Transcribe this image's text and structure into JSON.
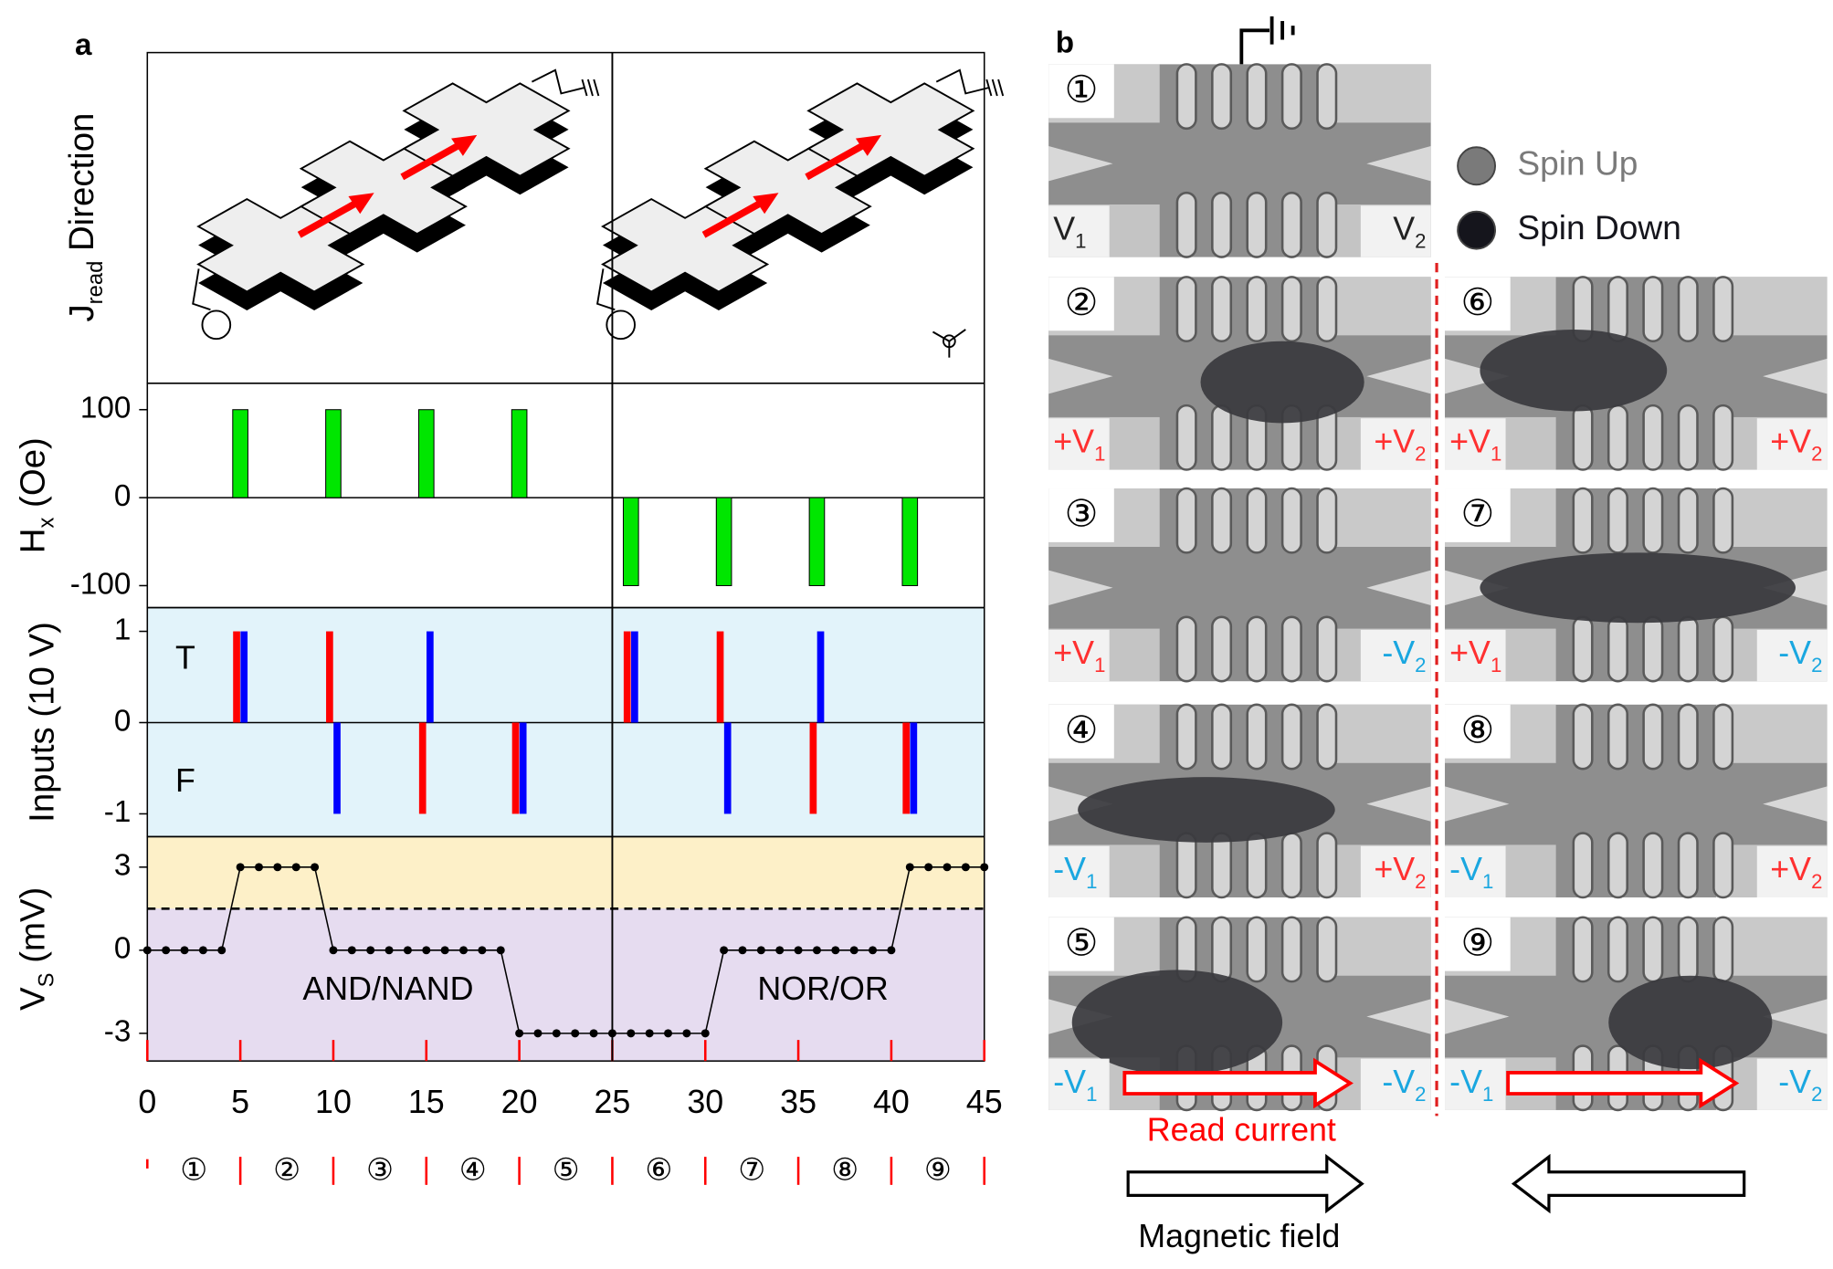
{
  "panel_a": {
    "label": "a",
    "schematic_ylabel": {
      "main": "J",
      "sub": "read",
      "rest": " Direction"
    }
  },
  "chart_data": [
    {
      "type": "bar",
      "ylabel": {
        "main": "H",
        "sub": "x",
        "rest": " (Oe)"
      },
      "x": [
        5,
        10,
        15,
        20,
        26,
        31,
        36,
        41
      ],
      "values": [
        100,
        100,
        100,
        100,
        -100,
        -100,
        -100,
        -100
      ],
      "color": "#00e600",
      "ylim": [
        -125,
        130
      ],
      "yticks": [
        -100,
        0,
        100
      ]
    },
    {
      "type": "bar",
      "ylabel": {
        "main": "Inputs  (10 V)"
      },
      "annotations": [
        "T",
        "F"
      ],
      "background": "#e2f3fa",
      "series": [
        {
          "color": "#ff0000",
          "x": [
            4.8,
            9.8,
            14.8,
            19.8,
            25.8,
            30.8,
            35.8,
            40.8
          ],
          "values": [
            1,
            1,
            -1,
            -1,
            1,
            1,
            -1,
            -1
          ]
        },
        {
          "color": "#0000ff",
          "x": [
            5.2,
            10.2,
            15.2,
            20.2,
            26.2,
            31.2,
            36.2,
            41.2
          ],
          "values": [
            1,
            -1,
            1,
            -1,
            1,
            -1,
            1,
            -1
          ]
        }
      ],
      "ylim": [
        -1.25,
        1.26
      ],
      "yticks": [
        -1,
        0,
        1
      ]
    },
    {
      "type": "line",
      "ylabel": {
        "main": "V",
        "sub": "S",
        "rest": " (mV)"
      },
      "x": [
        0,
        1,
        2,
        3,
        4,
        5,
        6,
        7,
        8,
        9,
        10,
        11,
        12,
        13,
        14,
        15,
        16,
        17,
        18,
        19,
        20,
        21,
        22,
        23,
        24,
        25,
        26,
        27,
        28,
        29,
        30,
        31,
        32,
        33,
        34,
        35,
        36,
        37,
        38,
        39,
        40,
        41,
        42,
        43,
        44,
        45
      ],
      "values": [
        0,
        0,
        0,
        0,
        0,
        3,
        3,
        3,
        3,
        3,
        0,
        0,
        0,
        0,
        0,
        0,
        0,
        0,
        0,
        0,
        -3,
        -3,
        -3,
        -3,
        -3,
        -3,
        -3,
        -3,
        -3,
        -3,
        -3,
        0,
        0,
        0,
        0,
        0,
        0,
        0,
        0,
        0,
        0,
        3,
        3,
        3,
        3,
        3
      ],
      "color": "#000000",
      "threshold": 1.5,
      "upper_color": "#fdf0c8",
      "lower_color": "#e6dcf0",
      "annotations": [
        "AND/NAND",
        "NOR/OR"
      ],
      "ylim": [
        -4.0,
        4.1
      ],
      "yticks": [
        -3,
        0,
        3
      ],
      "xlim": [
        0,
        45
      ],
      "xticks": [
        0,
        5,
        10,
        15,
        20,
        25,
        30,
        35,
        40,
        45
      ],
      "steps": [
        "①",
        "②",
        "③",
        "④",
        "⑤",
        "⑥",
        "⑦",
        "⑧",
        "⑨"
      ],
      "step_color": "#ff0000"
    }
  ],
  "panel_b": {
    "label": "b",
    "legend": [
      {
        "name": "Spin Up",
        "color": "#7a7a7a"
      },
      {
        "name": "Spin Down",
        "color": "#15151c"
      }
    ],
    "images": [
      {
        "number": "①",
        "left": {
          "text": "V",
          "sub": "1",
          "color": "#222222"
        },
        "right": {
          "text": "V",
          "sub": "2",
          "color": "#222222"
        }
      },
      {
        "number": "②",
        "left": {
          "text": "+V",
          "sub": "1",
          "color": "#ff3030"
        },
        "right": {
          "text": "+V",
          "sub": "2",
          "color": "#ff3030"
        }
      },
      {
        "number": "③",
        "left": {
          "text": "+V",
          "sub": "1",
          "color": "#ff3030"
        },
        "right": {
          "text": "-V",
          "sub": "2",
          "color": "#1aa7e0"
        }
      },
      {
        "number": "④",
        "left": {
          "text": "-V",
          "sub": "1",
          "color": "#1aa7e0"
        },
        "right": {
          "text": "+V",
          "sub": "2",
          "color": "#ff3030"
        }
      },
      {
        "number": "⑤",
        "left": {
          "text": "-V",
          "sub": "1",
          "color": "#1aa7e0"
        },
        "right": {
          "text": "-V",
          "sub": "2",
          "color": "#1aa7e0"
        }
      },
      {
        "number": "⑥",
        "left": {
          "text": "+V",
          "sub": "1",
          "color": "#ff3030"
        },
        "right": {
          "text": "+V",
          "sub": "2",
          "color": "#ff3030"
        }
      },
      {
        "number": "⑦",
        "left": {
          "text": "+V",
          "sub": "1",
          "color": "#ff3030"
        },
        "right": {
          "text": "-V",
          "sub": "2",
          "color": "#1aa7e0"
        }
      },
      {
        "number": "⑧",
        "left": {
          "text": "-V",
          "sub": "1",
          "color": "#1aa7e0"
        },
        "right": {
          "text": "+V",
          "sub": "2",
          "color": "#ff3030"
        }
      },
      {
        "number": "⑨",
        "left": {
          "text": "-V",
          "sub": "1",
          "color": "#1aa7e0"
        },
        "right": {
          "text": "-V",
          "sub": "2",
          "color": "#1aa7e0"
        }
      }
    ],
    "read_current": "Read current",
    "magnetic_field": "Magnetic field"
  }
}
